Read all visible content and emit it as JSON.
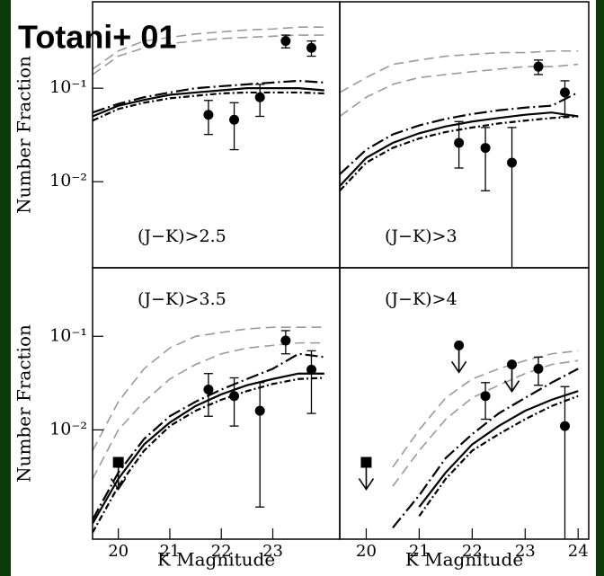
{
  "title": "Totani+ 01",
  "chart_data": [
    {
      "type": "line",
      "label": "(J−K)>2.5",
      "ylabel": "Number Fraction",
      "log_y": true,
      "xlim": [
        19.5,
        24.3
      ],
      "ylim": [
        0.0012,
        0.84
      ],
      "yticks": [
        {
          "value": 0.1,
          "label": "10⁻¹"
        },
        {
          "value": 0.01,
          "label": "10⁻²"
        }
      ],
      "x": [
        19.5,
        20,
        20.5,
        21,
        21.5,
        22,
        22.5,
        23,
        23.5,
        24
      ],
      "series": [
        {
          "color": "#9a9a9a",
          "style": "dashed",
          "values": [
            0.16,
            0.25,
            0.32,
            0.35,
            0.38,
            0.4,
            0.42,
            0.43,
            0.45,
            0.45
          ]
        },
        {
          "color": "#9a9a9a",
          "style": "dashed",
          "values": [
            0.14,
            0.22,
            0.27,
            0.3,
            0.32,
            0.34,
            0.35,
            0.36,
            0.37,
            0.37
          ]
        },
        {
          "color": "#000000",
          "style": "long-dash-dot",
          "values": [
            0.055,
            0.068,
            0.08,
            0.09,
            0.1,
            0.105,
            0.11,
            0.115,
            0.12,
            0.115
          ]
        },
        {
          "color": "#000000",
          "style": "solid",
          "values": [
            0.05,
            0.065,
            0.075,
            0.085,
            0.09,
            0.095,
            0.1,
            0.1,
            0.1,
            0.095
          ]
        },
        {
          "color": "#000000",
          "style": "dot-dash",
          "values": [
            0.045,
            0.06,
            0.07,
            0.078,
            0.083,
            0.088,
            0.09,
            0.09,
            0.09,
            0.088
          ]
        }
      ],
      "points": {
        "x": [
          21.75,
          22.25,
          22.75,
          23.25,
          23.75
        ],
        "values": [
          0.052,
          0.046,
          0.08,
          0.32,
          0.27
        ],
        "err_minus": [
          0.02,
          0.024,
          0.03,
          0.05,
          0.05
        ],
        "err_plus": [
          0.022,
          0.024,
          0.03,
          0.05,
          0.05
        ]
      }
    },
    {
      "type": "line",
      "label": "(J−K)>3",
      "log_y": true,
      "xlim": [
        19.5,
        24.2
      ],
      "ylim": [
        0.0012,
        0.84
      ],
      "x": [
        19.5,
        20,
        20.5,
        21,
        21.5,
        22,
        22.5,
        23,
        23.5,
        24
      ],
      "series": [
        {
          "color": "#9a9a9a",
          "style": "dashed",
          "values": [
            0.09,
            0.13,
            0.18,
            0.2,
            0.22,
            0.23,
            0.24,
            0.24,
            0.25,
            0.25
          ]
        },
        {
          "color": "#9a9a9a",
          "style": "dashed",
          "values": [
            0.05,
            0.08,
            0.11,
            0.13,
            0.14,
            0.15,
            0.16,
            0.17,
            0.17,
            0.18
          ]
        },
        {
          "color": "#000000",
          "style": "long-dash-dot",
          "values": [
            0.012,
            0.022,
            0.032,
            0.04,
            0.047,
            0.053,
            0.058,
            0.062,
            0.065,
            0.09
          ]
        },
        {
          "color": "#000000",
          "style": "solid",
          "values": [
            0.009,
            0.018,
            0.026,
            0.033,
            0.039,
            0.044,
            0.048,
            0.052,
            0.055,
            0.05
          ]
        },
        {
          "color": "#000000",
          "style": "dot-dash",
          "values": [
            0.008,
            0.016,
            0.023,
            0.029,
            0.034,
            0.038,
            0.042,
            0.045,
            0.048,
            0.05
          ]
        }
      ],
      "points": {
        "x": [
          21.75,
          22.25,
          22.75,
          23.25,
          23.75
        ],
        "values": [
          0.026,
          0.023,
          0.016,
          0.17,
          0.09
        ],
        "err_minus": [
          0.012,
          0.015,
          0.016,
          0.03,
          0.04
        ],
        "err_plus": [
          0.018,
          0.015,
          0.022,
          0.03,
          0.03
        ]
      }
    },
    {
      "type": "line",
      "label": "(J−K)>3.5",
      "ylabel": "Number Fraction",
      "xlabel": "K Magnitude",
      "log_y": true,
      "xlim": [
        19.5,
        24.3
      ],
      "ylim": [
        0.00068,
        0.54
      ],
      "xticks": [
        20,
        21,
        22,
        23
      ],
      "yticks": [
        {
          "value": 0.1,
          "label": "10⁻¹"
        },
        {
          "value": 0.01,
          "label": "10⁻²"
        }
      ],
      "x": [
        19.5,
        20,
        20.5,
        21,
        21.5,
        22,
        22.5,
        23,
        23.5,
        24
      ],
      "series": [
        {
          "color": "#9a9a9a",
          "style": "dashed",
          "values": [
            0.006,
            0.02,
            0.045,
            0.075,
            0.1,
            0.11,
            0.12,
            0.125,
            0.125,
            0.125
          ]
        },
        {
          "color": "#9a9a9a",
          "style": "dashed",
          "values": [
            0.003,
            0.01,
            0.02,
            0.035,
            0.05,
            0.065,
            0.075,
            0.08,
            0.085,
            0.085
          ]
        },
        {
          "color": "#000000",
          "style": "long-dash-dot",
          "values": [
            0.0011,
            0.0035,
            0.008,
            0.014,
            0.02,
            0.027,
            0.035,
            0.045,
            0.065,
            0.06
          ]
        },
        {
          "color": "#000000",
          "style": "solid",
          "values": [
            0.001,
            0.003,
            0.007,
            0.012,
            0.018,
            0.024,
            0.03,
            0.035,
            0.04,
            0.04
          ]
        },
        {
          "color": "#000000",
          "style": "dot-dash",
          "values": [
            0.0008,
            0.0025,
            0.006,
            0.011,
            0.016,
            0.021,
            0.026,
            0.031,
            0.035,
            0.036
          ]
        }
      ],
      "points": {
        "x": [
          21.75,
          22.25,
          22.75,
          23.25,
          23.75
        ],
        "values": [
          0.027,
          0.023,
          0.016,
          0.09,
          0.044
        ],
        "err_minus": [
          0.013,
          0.012,
          0.0145,
          0.025,
          0.029
        ],
        "err_plus": [
          0.013,
          0.013,
          0.016,
          0.025,
          0.026
        ]
      },
      "upper_limits": {
        "x": [
          20
        ],
        "values": [
          0.0045
        ],
        "markers": [
          "square"
        ]
      }
    },
    {
      "type": "line",
      "label": "(J−K)>4",
      "xlabel": "K Magnitude",
      "log_y": true,
      "xlim": [
        19.5,
        24.2
      ],
      "ylim": [
        0.00068,
        0.54
      ],
      "xticks": [
        20,
        21,
        22,
        23,
        24
      ],
      "x": [
        19.5,
        20,
        20.5,
        21,
        21.5,
        22,
        22.5,
        23,
        23.5,
        24
      ],
      "series": [
        {
          "color": "#9a9a9a",
          "style": "dashed",
          "values": [
            null,
            null,
            0.004,
            0.01,
            0.022,
            0.035,
            0.045,
            0.055,
            0.065,
            0.07
          ]
        },
        {
          "color": "#9a9a9a",
          "style": "dashed",
          "values": [
            null,
            null,
            0.0025,
            0.006,
            0.013,
            0.022,
            0.03,
            0.04,
            0.05,
            0.055
          ]
        },
        {
          "color": "#000000",
          "style": "long-dash-dot",
          "values": [
            null,
            null,
            0.0009,
            0.002,
            0.005,
            0.009,
            0.015,
            0.022,
            0.032,
            0.045
          ]
        },
        {
          "color": "#000000",
          "style": "solid",
          "values": [
            null,
            null,
            null,
            0.0015,
            0.0035,
            0.007,
            0.011,
            0.016,
            0.021,
            0.026
          ]
        },
        {
          "color": "#000000",
          "style": "dot-dash",
          "values": [
            null,
            null,
            null,
            0.0012,
            0.003,
            0.006,
            0.009,
            0.013,
            0.018,
            0.023
          ]
        }
      ],
      "points": {
        "x": [
          22.25,
          23.25,
          23.75
        ],
        "values": [
          0.023,
          0.045,
          0.011
        ],
        "err_minus": [
          0.01,
          0.015,
          0.011
        ],
        "err_plus": [
          0.009,
          0.015,
          0.018
        ]
      },
      "upper_limits": {
        "x": [
          20,
          21.75,
          22.75
        ],
        "values": [
          0.0045,
          0.08,
          0.05
        ],
        "markers": [
          "square",
          "circle",
          "circle"
        ]
      }
    }
  ]
}
